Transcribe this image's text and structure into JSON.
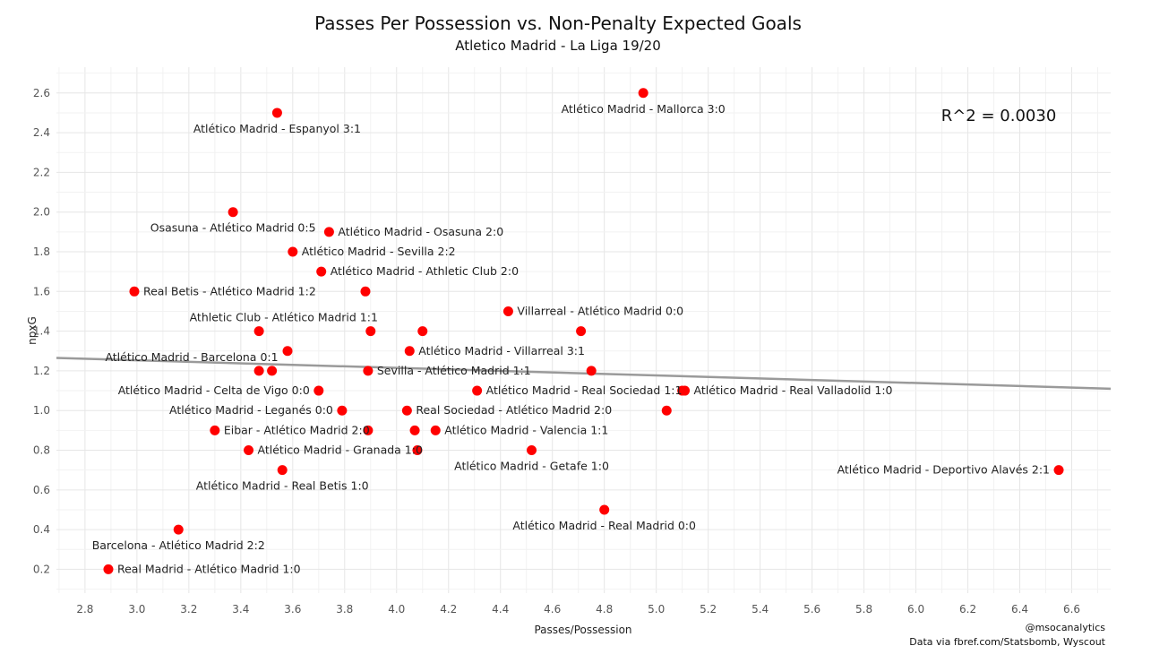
{
  "title": "Passes Per Possession vs. Non-Penalty Expected Goals",
  "subtitle": "Atletico Madrid - La Liga 19/20",
  "footer": {
    "handle": "@msocanalytics",
    "source": "Data via fbref.com/Statsbomb, Wyscout"
  },
  "chart_data": {
    "type": "scatter",
    "title": "Passes Per Possession vs. Non-Penalty Expected Goals",
    "subtitle": "Atletico Madrid - La Liga 19/20",
    "xlabel": "Passes/Possession",
    "ylabel": "npxG",
    "xlim": [
      2.69,
      6.75
    ],
    "ylim": [
      0.08,
      2.73
    ],
    "x_ticks": [
      "2.8",
      "3.0",
      "3.2",
      "3.4",
      "3.6",
      "3.8",
      "4.0",
      "4.2",
      "4.4",
      "4.6",
      "4.8",
      "5.0",
      "5.2",
      "5.4",
      "5.6",
      "5.8",
      "6.0",
      "6.2",
      "6.4",
      "6.6"
    ],
    "y_ticks": [
      "0.2",
      "0.4",
      "0.6",
      "0.8",
      "1.0",
      "1.2",
      "1.4",
      "1.6",
      "1.8",
      "2.0",
      "2.2",
      "2.4",
      "2.6"
    ],
    "grid": true,
    "point_color": "#ff0000",
    "trend_color": "#9a9a9a",
    "trendline": {
      "x": [
        2.69,
        6.75
      ],
      "y": [
        1.265,
        1.11
      ]
    },
    "annotation": "R^2 = 0.0030",
    "points": [
      {
        "x": 4.95,
        "y": 2.6,
        "label": "Atlético Madrid - Mallorca 3:0",
        "pos": "below"
      },
      {
        "x": 3.54,
        "y": 2.5,
        "label": "Atlético Madrid - Espanyol 3:1",
        "pos": "below"
      },
      {
        "x": 3.37,
        "y": 2.0,
        "label": "Osasuna - Atlético Madrid 0:5",
        "pos": "below"
      },
      {
        "x": 3.74,
        "y": 1.9,
        "label": "Atlético Madrid - Osasuna 2:0",
        "pos": "right"
      },
      {
        "x": 3.6,
        "y": 1.8,
        "label": "Atlético Madrid - Sevilla 2:2",
        "pos": "right"
      },
      {
        "x": 3.71,
        "y": 1.7,
        "label": "Atlético Madrid - Athletic Club 2:0",
        "pos": "right"
      },
      {
        "x": 2.99,
        "y": 1.6,
        "label": "Real Betis - Atlético Madrid 1:2",
        "pos": "right"
      },
      {
        "x": 3.88,
        "y": 1.6,
        "label": "",
        "pos": "none"
      },
      {
        "x": 4.43,
        "y": 1.5,
        "label": "Villarreal - Atlético Madrid 0:0",
        "pos": "right"
      },
      {
        "x": 3.47,
        "y": 1.4,
        "label": "",
        "pos": "none"
      },
      {
        "x": 3.9,
        "y": 1.4,
        "label": "Athletic Club - Atlético Madrid 1:1",
        "pos": "above-left"
      },
      {
        "x": 4.1,
        "y": 1.4,
        "label": "",
        "pos": "none"
      },
      {
        "x": 4.71,
        "y": 1.4,
        "label": "",
        "pos": "none"
      },
      {
        "x": 3.58,
        "y": 1.3,
        "label": "Atlético Madrid - Barcelona 0:1",
        "pos": "below-left"
      },
      {
        "x": 4.05,
        "y": 1.3,
        "label": "Atlético Madrid - Villarreal 3:1",
        "pos": "right"
      },
      {
        "x": 3.47,
        "y": 1.2,
        "label": "",
        "pos": "none"
      },
      {
        "x": 3.52,
        "y": 1.2,
        "label": "",
        "pos": "none"
      },
      {
        "x": 3.89,
        "y": 1.2,
        "label": "Sevilla - Atlético Madrid 1:1",
        "pos": "right"
      },
      {
        "x": 4.75,
        "y": 1.2,
        "label": "",
        "pos": "none"
      },
      {
        "x": 3.7,
        "y": 1.1,
        "label": "Atlético Madrid - Celta de Vigo 0:0",
        "pos": "left"
      },
      {
        "x": 4.31,
        "y": 1.1,
        "label": "Atlético Madrid - Real Sociedad 1:1",
        "pos": "right"
      },
      {
        "x": 5.1,
        "y": 1.1,
        "label": "",
        "pos": "none"
      },
      {
        "x": 5.11,
        "y": 1.1,
        "label": "Atlético Madrid - Real Valladolid 1:0",
        "pos": "right"
      },
      {
        "x": 3.79,
        "y": 1.0,
        "label": "Atlético Madrid - Leganés 0:0",
        "pos": "left"
      },
      {
        "x": 4.04,
        "y": 1.0,
        "label": "Real Sociedad - Atlético Madrid 2:0",
        "pos": "right"
      },
      {
        "x": 5.04,
        "y": 1.0,
        "label": "",
        "pos": "none"
      },
      {
        "x": 3.3,
        "y": 0.9,
        "label": "Eibar - Atlético Madrid 2:0",
        "pos": "right"
      },
      {
        "x": 3.89,
        "y": 0.9,
        "label": "",
        "pos": "none"
      },
      {
        "x": 4.07,
        "y": 0.9,
        "label": "",
        "pos": "none"
      },
      {
        "x": 4.15,
        "y": 0.9,
        "label": "Atlético Madrid - Valencia 1:1",
        "pos": "right"
      },
      {
        "x": 3.43,
        "y": 0.8,
        "label": "Atlético Madrid - Granada 1:0",
        "pos": "right"
      },
      {
        "x": 4.08,
        "y": 0.8,
        "label": "",
        "pos": "none"
      },
      {
        "x": 4.52,
        "y": 0.8,
        "label": "Atlético Madrid - Getafe 1:0",
        "pos": "below"
      },
      {
        "x": 3.56,
        "y": 0.7,
        "label": "Atlético Madrid - Real Betis 1:0",
        "pos": "below"
      },
      {
        "x": 6.55,
        "y": 0.7,
        "label": "Atlético Madrid - Deportivo Alavés 2:1",
        "pos": "left"
      },
      {
        "x": 4.8,
        "y": 0.5,
        "label": "Atlético Madrid - Real Madrid 0:0",
        "pos": "below"
      },
      {
        "x": 3.16,
        "y": 0.4,
        "label": "Barcelona - Atlético Madrid 2:2",
        "pos": "below"
      },
      {
        "x": 2.89,
        "y": 0.2,
        "label": "Real Madrid - Atlético Madrid 1:0",
        "pos": "right"
      }
    ]
  }
}
